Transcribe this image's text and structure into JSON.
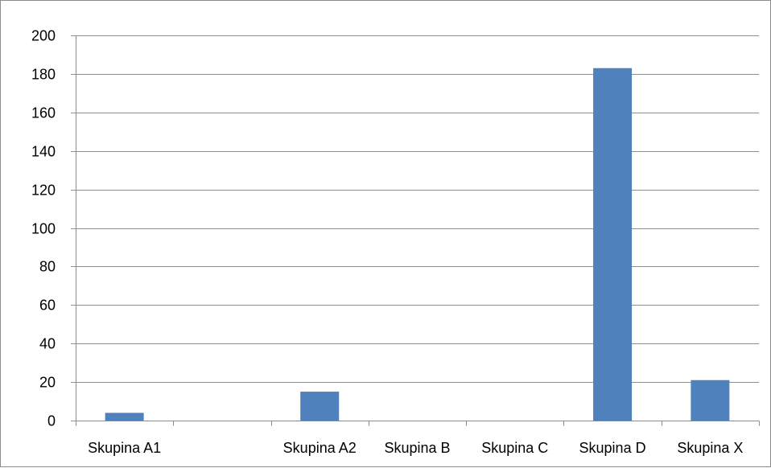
{
  "chart_data": {
    "type": "bar",
    "categories": [
      "Skupina A1",
      "",
      "Skupina A2",
      "Skupina B",
      "Skupina C",
      "Skupina D",
      "Skupina X"
    ],
    "values": [
      4,
      0,
      15,
      0,
      0,
      183,
      21
    ],
    "title": "",
    "xlabel": "",
    "ylabel": "",
    "ylim": [
      0,
      200
    ],
    "yticks": [
      0,
      20,
      40,
      60,
      80,
      100,
      120,
      140,
      160,
      180,
      200
    ],
    "grid": true,
    "legend": "none",
    "bar_color": "#4f81bd"
  }
}
